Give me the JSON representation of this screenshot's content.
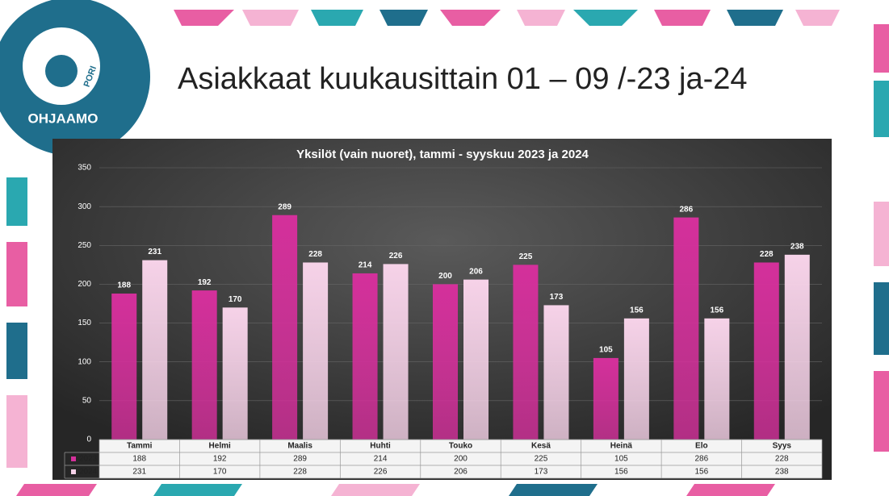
{
  "slide_title": "Asiakkaat kuukausittain 01 – 09 /-23 ja-24",
  "logo": {
    "name": "OHJAAMO",
    "place": "PORI"
  },
  "chart_data": {
    "type": "bar",
    "title": "Yksilöt (vain nuoret), tammi - syyskuu 2023 ja 2024",
    "categories": [
      "Tammi",
      "Helmi",
      "Maalis",
      "Huhti",
      "Touko",
      "Kesä",
      "Heinä",
      "Elo",
      "Syys"
    ],
    "series": [
      {
        "name": "2023",
        "color": "#d4309b",
        "values": [
          188,
          192,
          289,
          214,
          200,
          225,
          105,
          286,
          228
        ]
      },
      {
        "name": "2024",
        "color": "#f6d2e8",
        "values": [
          231,
          170,
          228,
          226,
          206,
          173,
          156,
          156,
          238
        ]
      }
    ],
    "ylim": [
      0,
      350
    ],
    "yticks": [
      0,
      50,
      100,
      150,
      200,
      250,
      300,
      350
    ],
    "grid": true,
    "data_table": true
  }
}
